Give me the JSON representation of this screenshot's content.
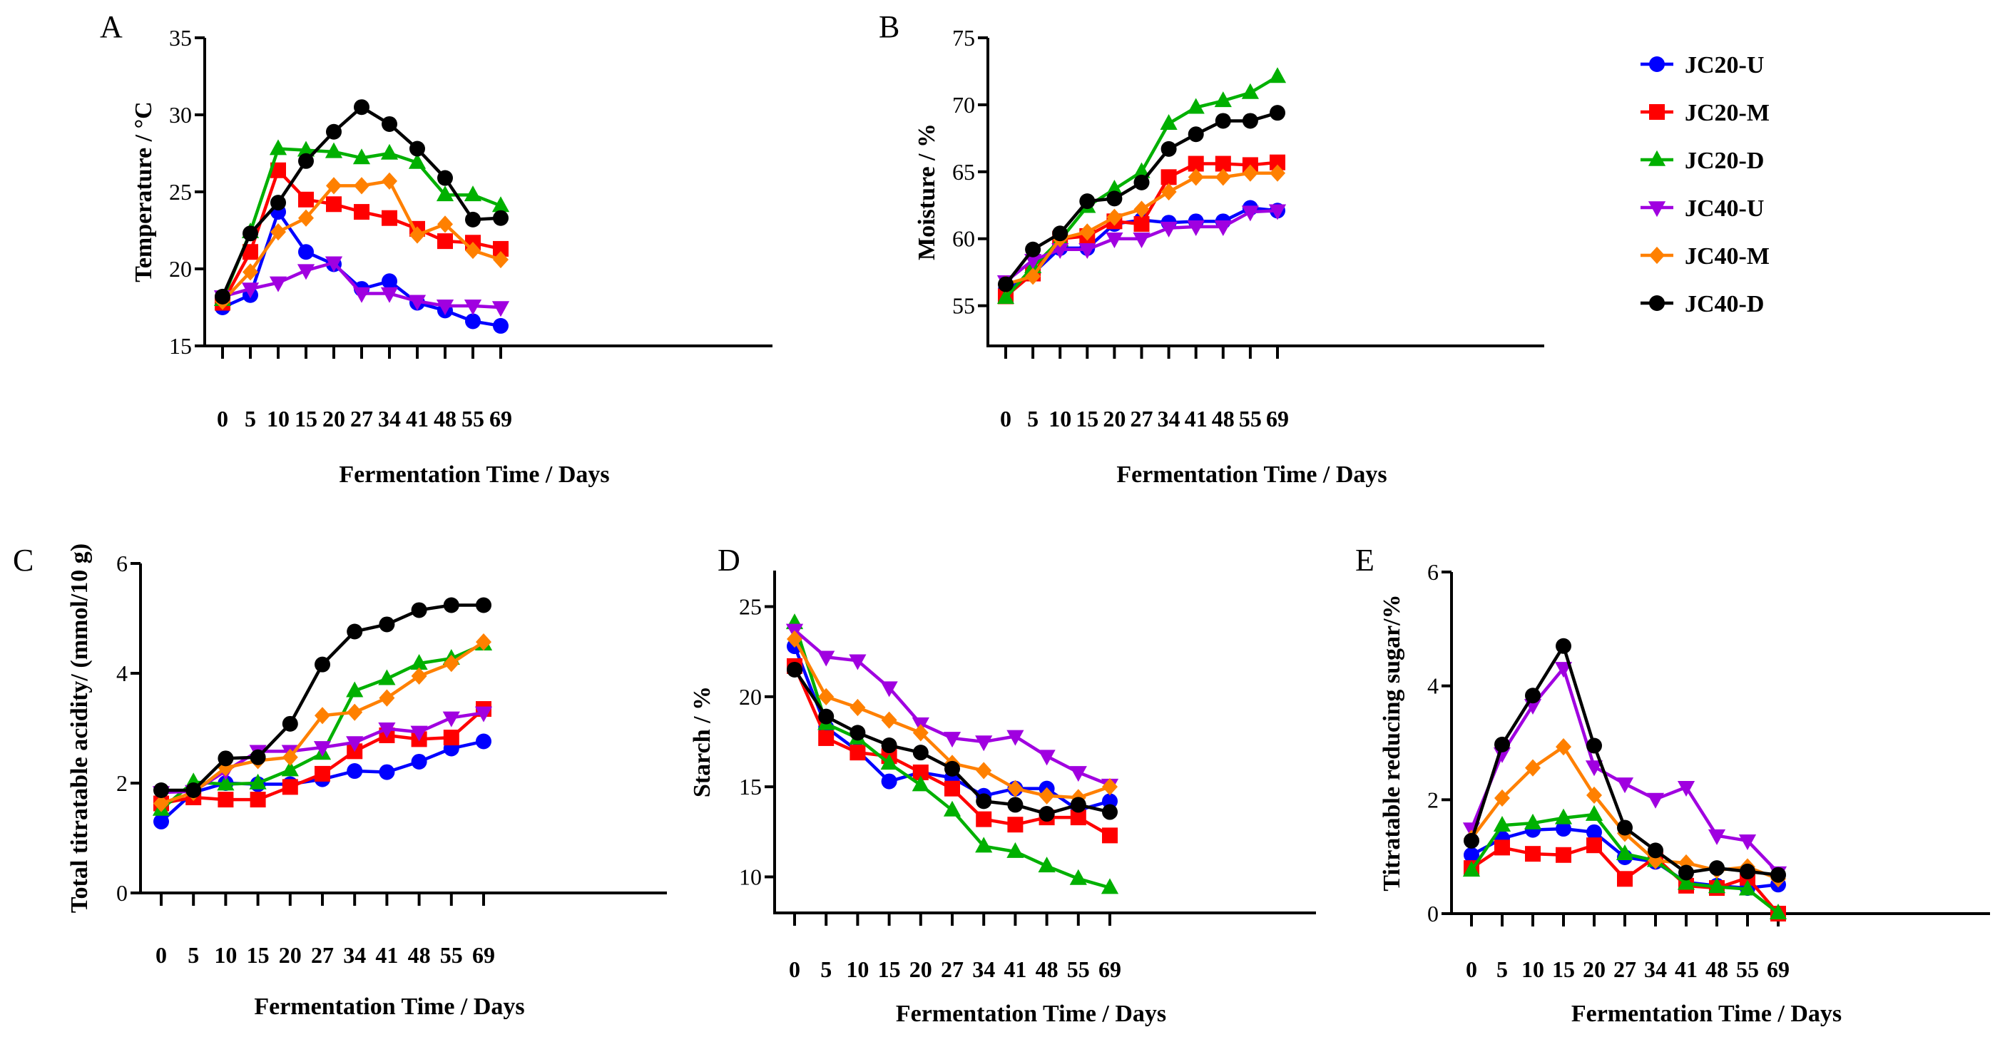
{
  "legend": {
    "placement": "right",
    "entries": [
      {
        "name": "JC20-U",
        "color": "#0000ff",
        "marker": "circle"
      },
      {
        "name": "JC20-M",
        "color": "#ff0000",
        "marker": "square"
      },
      {
        "name": "JC20-D",
        "color": "#00b000",
        "marker": "triangle-up"
      },
      {
        "name": "JC40-U",
        "color": "#a000e0",
        "marker": "triangle-down"
      },
      {
        "name": "JC40-M",
        "color": "#ff8000",
        "marker": "diamond"
      },
      {
        "name": "JC40-D",
        "color": "#000000",
        "marker": "circle"
      }
    ]
  },
  "chart_data": [
    {
      "panel": "A",
      "type": "line",
      "xlabel": "Fermentation Time / Days",
      "ylabel": "Temperature / °C",
      "categories": [
        "0",
        "5",
        "10",
        "15",
        "20",
        "27",
        "34",
        "41",
        "48",
        "55",
        "69"
      ],
      "ylim": [
        15,
        35
      ],
      "yticks": [
        15,
        20,
        25,
        30,
        35
      ],
      "grid": false,
      "series": [
        {
          "name": "JC20-U",
          "values": [
            17.5,
            18.3,
            23.7,
            21.1,
            20.3,
            18.7,
            19.2,
            17.8,
            17.3,
            16.6,
            16.3
          ]
        },
        {
          "name": "JC20-M",
          "values": [
            17.8,
            21.1,
            26.4,
            24.5,
            24.2,
            23.7,
            23.3,
            22.6,
            21.8,
            21.7,
            21.3
          ]
        },
        {
          "name": "JC20-D",
          "values": [
            18.0,
            22.4,
            27.8,
            27.7,
            27.6,
            27.2,
            27.5,
            26.9,
            24.8,
            24.8,
            24.1
          ]
        },
        {
          "name": "JC40-U",
          "values": [
            18.2,
            18.7,
            19.1,
            19.9,
            20.4,
            18.4,
            18.4,
            17.9,
            17.6,
            17.6,
            17.5
          ]
        },
        {
          "name": "JC40-M",
          "values": [
            17.9,
            19.8,
            22.4,
            23.3,
            25.4,
            25.4,
            25.7,
            22.2,
            22.9,
            21.2,
            20.6
          ]
        },
        {
          "name": "JC40-D",
          "values": [
            18.2,
            22.3,
            24.3,
            27.0,
            28.9,
            30.5,
            29.4,
            27.8,
            25.9,
            23.2,
            23.3
          ]
        }
      ]
    },
    {
      "panel": "B",
      "type": "line",
      "xlabel": "Fermentation Time / Days",
      "ylabel": "Moisture / %",
      "categories": [
        "0",
        "5",
        "10",
        "15",
        "20",
        "27",
        "34",
        "41",
        "48",
        "55",
        "69"
      ],
      "ylim": [
        52,
        75
      ],
      "yticks": [
        55,
        60,
        65,
        70,
        75
      ],
      "grid": false,
      "series": [
        {
          "name": "JC20-U",
          "values": [
            56.2,
            57.4,
            59.3,
            59.3,
            61.1,
            61.4,
            61.2,
            61.3,
            61.3,
            62.3,
            62.1
          ]
        },
        {
          "name": "JC20-M",
          "values": [
            55.7,
            57.4,
            60.0,
            60.2,
            61.3,
            61.1,
            64.6,
            65.6,
            65.6,
            65.5,
            65.7
          ]
        },
        {
          "name": "JC20-D",
          "values": [
            55.6,
            57.9,
            59.9,
            62.4,
            63.7,
            65.0,
            68.6,
            69.8,
            70.3,
            70.9,
            72.1
          ]
        },
        {
          "name": "JC40-U",
          "values": [
            56.8,
            58.4,
            59.2,
            59.2,
            60.0,
            60.0,
            60.8,
            60.9,
            60.9,
            62.0,
            62.1
          ]
        },
        {
          "name": "JC40-M",
          "values": [
            56.6,
            57.2,
            60.0,
            60.5,
            61.6,
            62.2,
            63.5,
            64.6,
            64.6,
            64.9,
            64.9
          ]
        },
        {
          "name": "JC40-D",
          "values": [
            56.6,
            59.2,
            60.4,
            62.8,
            63.0,
            64.2,
            66.7,
            67.8,
            68.8,
            68.8,
            69.4
          ]
        }
      ]
    },
    {
      "panel": "C",
      "type": "line",
      "xlabel": "Fermentation Time / Days",
      "ylabel": "Total titratable acidity/ (mmol/10 g)",
      "categories": [
        "0",
        "5",
        "10",
        "15",
        "20",
        "27",
        "34",
        "41",
        "48",
        "55",
        "69"
      ],
      "ylim": [
        0,
        6
      ],
      "yticks": [
        0,
        2,
        4,
        6
      ],
      "grid": false,
      "series": [
        {
          "name": "JC20-U",
          "values": [
            1.3,
            1.83,
            2.0,
            1.98,
            1.98,
            2.07,
            2.22,
            2.2,
            2.39,
            2.63,
            2.76
          ]
        },
        {
          "name": "JC20-M",
          "values": [
            1.63,
            1.74,
            1.7,
            1.7,
            1.93,
            2.17,
            2.58,
            2.87,
            2.8,
            2.83,
            3.35
          ]
        },
        {
          "name": "JC20-D",
          "values": [
            1.52,
            2.02,
            1.98,
            2.0,
            2.24,
            2.54,
            3.68,
            3.9,
            4.18,
            4.27,
            4.53
          ]
        },
        {
          "name": "JC40-U",
          "values": [
            1.83,
            1.85,
            2.22,
            2.58,
            2.58,
            2.65,
            2.74,
            2.99,
            2.93,
            3.19,
            3.28
          ]
        },
        {
          "name": "JC40-M",
          "values": [
            1.63,
            1.83,
            2.28,
            2.41,
            2.47,
            3.23,
            3.29,
            3.55,
            3.95,
            4.18,
            4.57
          ]
        },
        {
          "name": "JC40-D",
          "values": [
            1.87,
            1.87,
            2.45,
            2.47,
            3.08,
            4.16,
            4.76,
            4.89,
            5.15,
            5.24,
            5.24
          ]
        }
      ]
    },
    {
      "panel": "D",
      "type": "line",
      "xlabel": "Fermentation Time / Days",
      "ylabel": "Starch / %",
      "categories": [
        "0",
        "5",
        "10",
        "15",
        "20",
        "27",
        "34",
        "41",
        "48",
        "55",
        "69"
      ],
      "ylim": [
        8,
        27
      ],
      "yticks": [
        10,
        15,
        20,
        25
      ],
      "grid": false,
      "series": [
        {
          "name": "JC20-U",
          "values": [
            22.8,
            18.3,
            17.0,
            15.3,
            15.8,
            15.5,
            14.5,
            14.9,
            14.9,
            13.7,
            14.2
          ]
        },
        {
          "name": "JC20-M",
          "values": [
            21.7,
            17.7,
            16.9,
            16.7,
            15.8,
            14.9,
            13.2,
            12.9,
            13.3,
            13.3,
            12.3
          ]
        },
        {
          "name": "JC20-D",
          "values": [
            24.1,
            18.5,
            17.7,
            16.3,
            15.1,
            13.7,
            11.7,
            11.4,
            10.6,
            9.9,
            9.4
          ]
        },
        {
          "name": "JC40-U",
          "values": [
            23.7,
            22.2,
            22.0,
            20.5,
            18.5,
            17.7,
            17.5,
            17.8,
            16.7,
            15.8,
            15.1
          ]
        },
        {
          "name": "JC40-M",
          "values": [
            23.2,
            20.0,
            19.4,
            18.7,
            18.0,
            16.3,
            15.9,
            14.9,
            14.5,
            14.4,
            15.0
          ]
        },
        {
          "name": "JC40-D",
          "values": [
            21.5,
            18.9,
            18.0,
            17.3,
            16.9,
            16.0,
            14.2,
            14.0,
            13.5,
            14.0,
            13.6
          ]
        }
      ]
    },
    {
      "panel": "E",
      "type": "line",
      "xlabel": "Fermentation Time / Days",
      "ylabel": "Titratable reducing sugar/%",
      "categories": [
        "0",
        "5",
        "10",
        "15",
        "20",
        "27",
        "34",
        "41",
        "48",
        "55",
        "69"
      ],
      "ylim": [
        0,
        6
      ],
      "yticks": [
        0,
        2,
        4,
        6
      ],
      "grid": false,
      "series": [
        {
          "name": "JC20-U",
          "values": [
            1.03,
            1.32,
            1.47,
            1.49,
            1.43,
            0.99,
            0.91,
            0.55,
            0.49,
            0.45,
            0.51
          ]
        },
        {
          "name": "JC20-M",
          "values": [
            0.8,
            1.16,
            1.05,
            1.03,
            1.2,
            0.61,
            0.99,
            0.49,
            0.45,
            0.63,
            0.0
          ]
        },
        {
          "name": "JC20-D",
          "values": [
            0.76,
            1.55,
            1.59,
            1.68,
            1.74,
            1.05,
            0.93,
            0.53,
            0.47,
            0.43,
            0.01
          ]
        },
        {
          "name": "JC40-U",
          "values": [
            1.49,
            2.81,
            3.66,
            4.31,
            2.58,
            2.28,
            2.01,
            2.22,
            1.37,
            1.28,
            0.72
          ]
        },
        {
          "name": "JC40-M",
          "values": [
            1.32,
            2.03,
            2.56,
            2.93,
            2.08,
            1.41,
            0.93,
            0.89,
            0.76,
            0.82,
            0.61
          ]
        },
        {
          "name": "JC40-D",
          "values": [
            1.28,
            2.97,
            3.83,
            4.7,
            2.95,
            1.51,
            1.11,
            0.72,
            0.8,
            0.74,
            0.68
          ]
        }
      ]
    }
  ]
}
